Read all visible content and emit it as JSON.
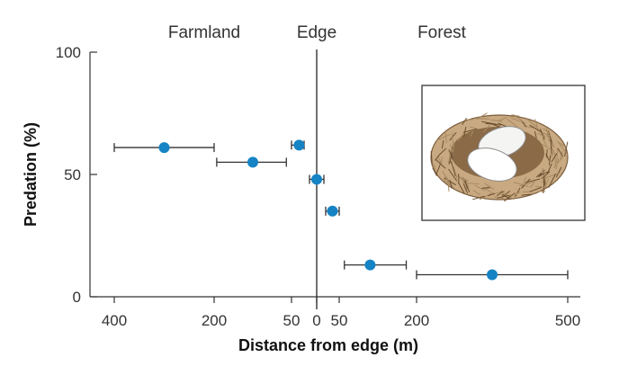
{
  "chart_data": {
    "type": "scatter",
    "title": "",
    "xlabel": "Distance from edge (m)",
    "ylabel": "Predation (%)",
    "ylim": [
      0,
      100
    ],
    "yticks": [
      0,
      50,
      100
    ],
    "xtick_labels": [
      "400",
      "200",
      "50",
      "0",
      "50",
      "200",
      "500"
    ],
    "region_labels": {
      "farmland": "Farmland",
      "edge": "Edge",
      "forest": "Forest"
    },
    "grid": false,
    "point_color": "#1683c4",
    "points": [
      {
        "region": "farmland",
        "x": 300,
        "x_low": 400,
        "x_high": 200,
        "y": 61
      },
      {
        "region": "farmland",
        "x": 125,
        "x_low": 195,
        "x_high": 60,
        "y": 55
      },
      {
        "region": "farmland",
        "x": 35,
        "x_low": 50,
        "x_high": 25,
        "y": 62
      },
      {
        "region": "edge",
        "x": 0,
        "x_low": 5,
        "x_high": 10,
        "y": 48
      },
      {
        "region": "forest",
        "x": 35,
        "x_low": 20,
        "x_high": 50,
        "y": 35
      },
      {
        "region": "forest",
        "x": 110,
        "x_low": 60,
        "x_high": 180,
        "y": 13
      },
      {
        "region": "forest",
        "x": 350,
        "x_low": 200,
        "x_high": 500,
        "y": 9
      }
    ]
  }
}
